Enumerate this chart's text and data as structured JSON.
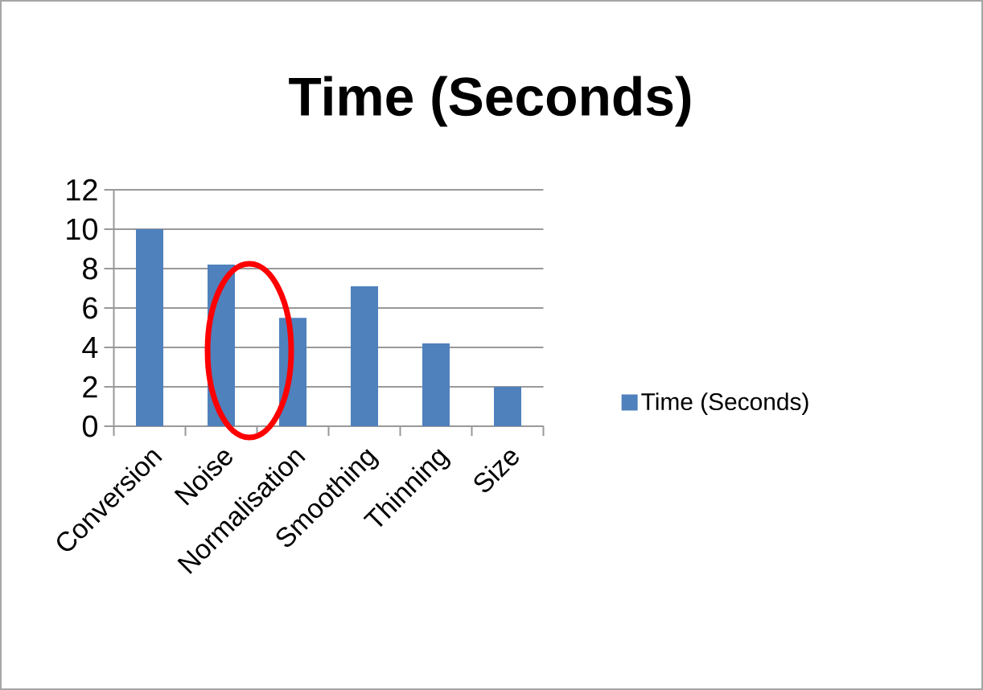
{
  "chart_data": {
    "type": "bar",
    "title": "Time (Seconds)",
    "categories": [
      "Conversion",
      "Noise",
      "Normalisation",
      "Smoothing",
      "Thinning",
      "Size"
    ],
    "series": [
      {
        "name": "Time (Seconds)",
        "color": "#4f81bd",
        "values": [
          10,
          8.2,
          5.5,
          7.1,
          4.2,
          2.0
        ]
      }
    ],
    "ylim": [
      0,
      12
    ],
    "yticks": [
      0,
      2,
      4,
      6,
      8,
      10,
      12
    ],
    "grid": "y",
    "legend": "right"
  }
}
